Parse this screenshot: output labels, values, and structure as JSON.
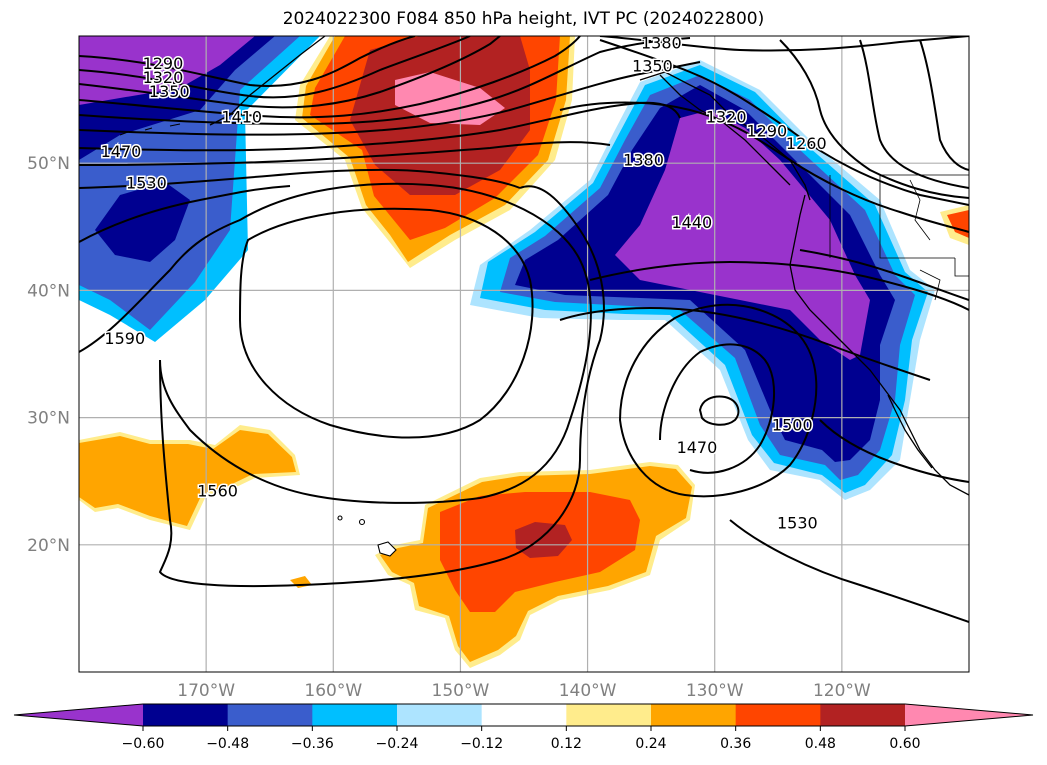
{
  "title": "2024022300 F084 850 hPa height, IVT PC (2024022800)",
  "map": {
    "extent": {
      "lon_min": -180,
      "lon_max": -110,
      "lat_min": 10,
      "lat_max": 60
    },
    "lat_ticks": [
      {
        "value": 50,
        "label": "50°N"
      },
      {
        "value": 40,
        "label": "40°N"
      },
      {
        "value": 30,
        "label": "30°N"
      },
      {
        "value": 20,
        "label": "20°N"
      }
    ],
    "lon_ticks": [
      {
        "value": -170,
        "label": "170°W"
      },
      {
        "value": -160,
        "label": "160°W"
      },
      {
        "value": -150,
        "label": "150°W"
      },
      {
        "value": -140,
        "label": "140°W"
      },
      {
        "value": -130,
        "label": "130°W"
      },
      {
        "value": -120,
        "label": "120°W"
      }
    ],
    "grid": true,
    "contour_field": "850 hPa height",
    "contour_labels": [
      {
        "text": "1290",
        "lon": -175,
        "lat": 57.4
      },
      {
        "text": "1320",
        "lon": -175,
        "lat": 56.3
      },
      {
        "text": "1350",
        "lon": -174.5,
        "lat": 55.2
      },
      {
        "text": "1410",
        "lon": -168.8,
        "lat": 53.2
      },
      {
        "text": "1470",
        "lon": -178.3,
        "lat": 50.5
      },
      {
        "text": "1530",
        "lon": -176.3,
        "lat": 48.0
      },
      {
        "text": "1590",
        "lon": -178.0,
        "lat": 35.8
      },
      {
        "text": "1560",
        "lon": -170.7,
        "lat": 23.8
      },
      {
        "text": "1380",
        "lon": -135.8,
        "lat": 59.0
      },
      {
        "text": "1350",
        "lon": -136.5,
        "lat": 57.2
      },
      {
        "text": "1380",
        "lon": -137.2,
        "lat": 49.8
      },
      {
        "text": "1320",
        "lon": -130.7,
        "lat": 53.2
      },
      {
        "text": "1290",
        "lon": -127.5,
        "lat": 52.1
      },
      {
        "text": "1260",
        "lon": -124.4,
        "lat": 51.1
      },
      {
        "text": "1440",
        "lon": -133.4,
        "lat": 44.9
      },
      {
        "text": "1500",
        "lon": -125.5,
        "lat": 29.0
      },
      {
        "text": "1470",
        "lon": -133.0,
        "lat": 27.2
      },
      {
        "text": "1530",
        "lon": -125.1,
        "lat": 21.3
      }
    ]
  },
  "colorbar": {
    "ticks": [
      "−0.60",
      "−0.48",
      "−0.36",
      "−0.24",
      "−0.12",
      "0.12",
      "0.24",
      "0.36",
      "0.48",
      "0.60"
    ],
    "colors": [
      "#9933cc",
      "#000090",
      "#3a5dcc",
      "#00bfff",
      "#ade4ff",
      "#ffffff",
      "#ffec8c",
      "#ffa500",
      "#ff4500",
      "#b22222",
      "#ff88b0",
      "#ff88b0"
    ],
    "extend": "both"
  }
}
